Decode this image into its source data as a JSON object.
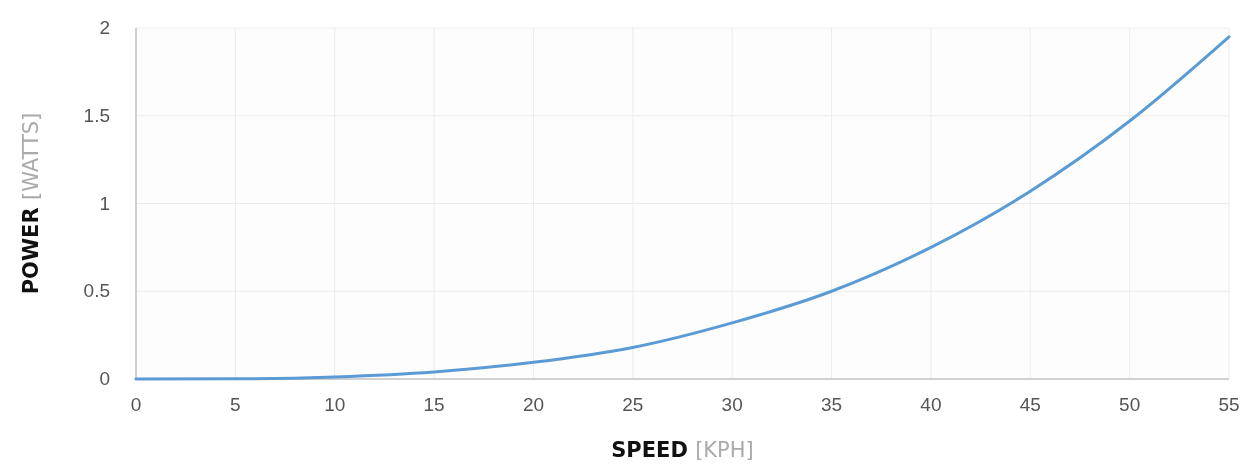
{
  "chart_data": {
    "type": "line",
    "xlabel": "SPEED [KPH]",
    "ylabel": "POWER [WATTS]",
    "x": [
      0,
      5,
      10,
      15,
      20,
      25,
      30,
      35,
      40,
      45,
      50,
      55
    ],
    "series": [
      {
        "color": "#5b9bd5",
        "values": [
          0,
          0.001,
          0.012,
          0.04,
          0.095,
          0.18,
          0.32,
          0.5,
          0.75,
          1.07,
          1.47,
          1.95
        ]
      }
    ],
    "xlim": [
      0,
      55
    ],
    "xticks": [
      0,
      5,
      10,
      15,
      20,
      25,
      30,
      35,
      40,
      45,
      50,
      55
    ],
    "ylim": [
      0,
      2
    ],
    "yticks": [
      0,
      0.5,
      1,
      1.5,
      2
    ],
    "grid": true,
    "marker": "none",
    "line_style": "solid"
  }
}
